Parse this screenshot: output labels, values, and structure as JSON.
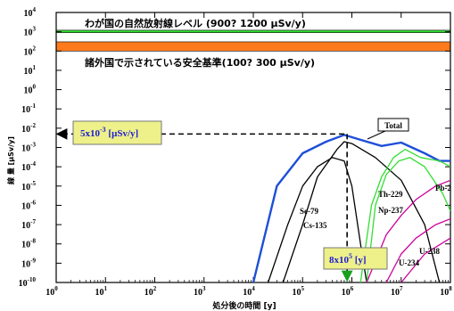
{
  "chart_data": {
    "type": "line",
    "x_scale": "log",
    "y_scale": "log",
    "xlim": [
      1,
      100000000
    ],
    "ylim": [
      1e-10,
      10000
    ],
    "xlabel": "処分後の時間 [y]",
    "ylabel": "線 量 [μSv/y]",
    "x_ticks": [
      {
        "base": "10",
        "exp": "0"
      },
      {
        "base": "10",
        "exp": "1"
      },
      {
        "base": "10",
        "exp": "2"
      },
      {
        "base": "10",
        "exp": "3"
      },
      {
        "base": "10",
        "exp": "4"
      },
      {
        "base": "10",
        "exp": "5"
      },
      {
        "base": "10",
        "exp": "6"
      },
      {
        "base": "10",
        "exp": "7"
      },
      {
        "base": "10",
        "exp": "8"
      }
    ],
    "y_ticks": [
      {
        "base": "10",
        "exp": "-10"
      },
      {
        "base": "10",
        "exp": "-9"
      },
      {
        "base": "10",
        "exp": "-8"
      },
      {
        "base": "10",
        "exp": "-7"
      },
      {
        "base": "10",
        "exp": "-6"
      },
      {
        "base": "10",
        "exp": "-5"
      },
      {
        "base": "10",
        "exp": "-4"
      },
      {
        "base": "10",
        "exp": "-3"
      },
      {
        "base": "10",
        "exp": "-2"
      },
      {
        "base": "10",
        "exp": "-1"
      },
      {
        "base": "10",
        "exp": "0"
      },
      {
        "base": "10",
        "exp": "1"
      },
      {
        "base": "10",
        "exp": "2"
      },
      {
        "base": "10",
        "exp": "3"
      },
      {
        "base": "10",
        "exp": "4"
      }
    ],
    "reference_bands": [
      {
        "label": "わが国の自然放射線レベル (900?  1200 μSv/y)",
        "y_min": 900,
        "y_max": 1200,
        "color": "#33dd33"
      },
      {
        "label": "諸外国で示されている安全基準(100?  300 μSv/y)",
        "y_min": 100,
        "y_max": 300,
        "color": "#ff7a1a"
      }
    ],
    "series": [
      {
        "name": "Total",
        "color": "#1d4fd8",
        "points": [
          [
            10000,
            1e-10
          ],
          [
            30000,
            1e-05
          ],
          [
            100000,
            0.0005
          ],
          [
            300000,
            0.002
          ],
          [
            700000,
            0.0045
          ],
          [
            1500000,
            0.0025
          ],
          [
            4000000,
            0.0012
          ],
          [
            10000000,
            0.0018
          ],
          [
            30000000,
            0.0005
          ],
          [
            60000000,
            0.0002
          ],
          [
            100000000,
            0.0002
          ]
        ]
      },
      {
        "name": "Se-79",
        "color": "#000000",
        "points": [
          [
            20000,
            1e-10
          ],
          [
            50000,
            1e-07
          ],
          [
            100000,
            1e-05
          ],
          [
            200000,
            0.0001
          ],
          [
            400000,
            0.0003
          ],
          [
            700000,
            0.0002
          ],
          [
            1000000,
            1e-05
          ],
          [
            1500000,
            1e-08
          ],
          [
            2000000,
            1e-10
          ]
        ]
      },
      {
        "name": "Cs-135",
        "color": "#000000",
        "points": [
          [
            40000,
            1e-10
          ],
          [
            100000,
            1e-07
          ],
          [
            200000,
            3e-05
          ],
          [
            500000,
            0.0008
          ],
          [
            700000,
            0.002
          ],
          [
            1000000,
            0.0016
          ],
          [
            3000000,
            0.0003
          ],
          [
            10000000,
            2e-05
          ],
          [
            30000000,
            1e-07
          ],
          [
            60000000,
            1e-10
          ]
        ]
      },
      {
        "name": "Th-229",
        "color": "#33dd33",
        "points": [
          [
            1500000,
            1e-10
          ],
          [
            2500000,
            1e-06
          ],
          [
            4000000,
            3e-05
          ],
          [
            7000000,
            0.0003
          ],
          [
            12000000,
            0.0008
          ],
          [
            25000000,
            0.0003
          ],
          [
            60000000,
            0.0002
          ],
          [
            100000000,
            0.0001
          ]
        ]
      },
      {
        "name": "Np-237",
        "color": "#33dd33",
        "points": [
          [
            2000000,
            1e-10
          ],
          [
            3000000,
            1e-06
          ],
          [
            5000000,
            4e-05
          ],
          [
            9000000,
            0.0002
          ],
          [
            15000000,
            0.0003
          ],
          [
            30000000,
            0.0001
          ],
          [
            70000000,
            4e-06
          ],
          [
            100000000,
            5e-07
          ]
        ]
      },
      {
        "name": "Pb-2",
        "color": "#cc0099",
        "points": [
          [
            2000000,
            1e-10
          ],
          [
            5000000,
            3e-08
          ],
          [
            10000000,
            3e-07
          ],
          [
            20000000,
            2e-06
          ],
          [
            50000000,
            1e-05
          ],
          [
            100000000,
            2e-05
          ]
        ]
      },
      {
        "name": "U-238",
        "color": "#cc0099",
        "points": [
          [
            5000000,
            1e-10
          ],
          [
            10000000,
            3e-09
          ],
          [
            20000000,
            2e-08
          ],
          [
            50000000,
            1e-07
          ],
          [
            100000000,
            2e-07
          ]
        ]
      },
      {
        "name": "U-234",
        "color": "#cc0099",
        "points": [
          [
            10000000,
            1e-10
          ],
          [
            30000000,
            3e-09
          ],
          [
            100000000,
            2e-08
          ]
        ]
      }
    ],
    "annotations": {
      "dose_callout": {
        "text": "5x10-3 [μSv/y]",
        "mant": "5x10",
        "exp": "-3",
        "unit": " [μSv/y]",
        "y": 0.005,
        "x_end": 700000
      },
      "time_callout": {
        "text": "8x105 [y]",
        "mant": "8x10",
        "exp": "5",
        "unit": " [y]",
        "x": 800000
      },
      "total_label": "Total"
    }
  },
  "colors": {
    "callout_fill": "#eef08a",
    "callout_text": "#1c1cd6",
    "dashed": "#000000"
  }
}
